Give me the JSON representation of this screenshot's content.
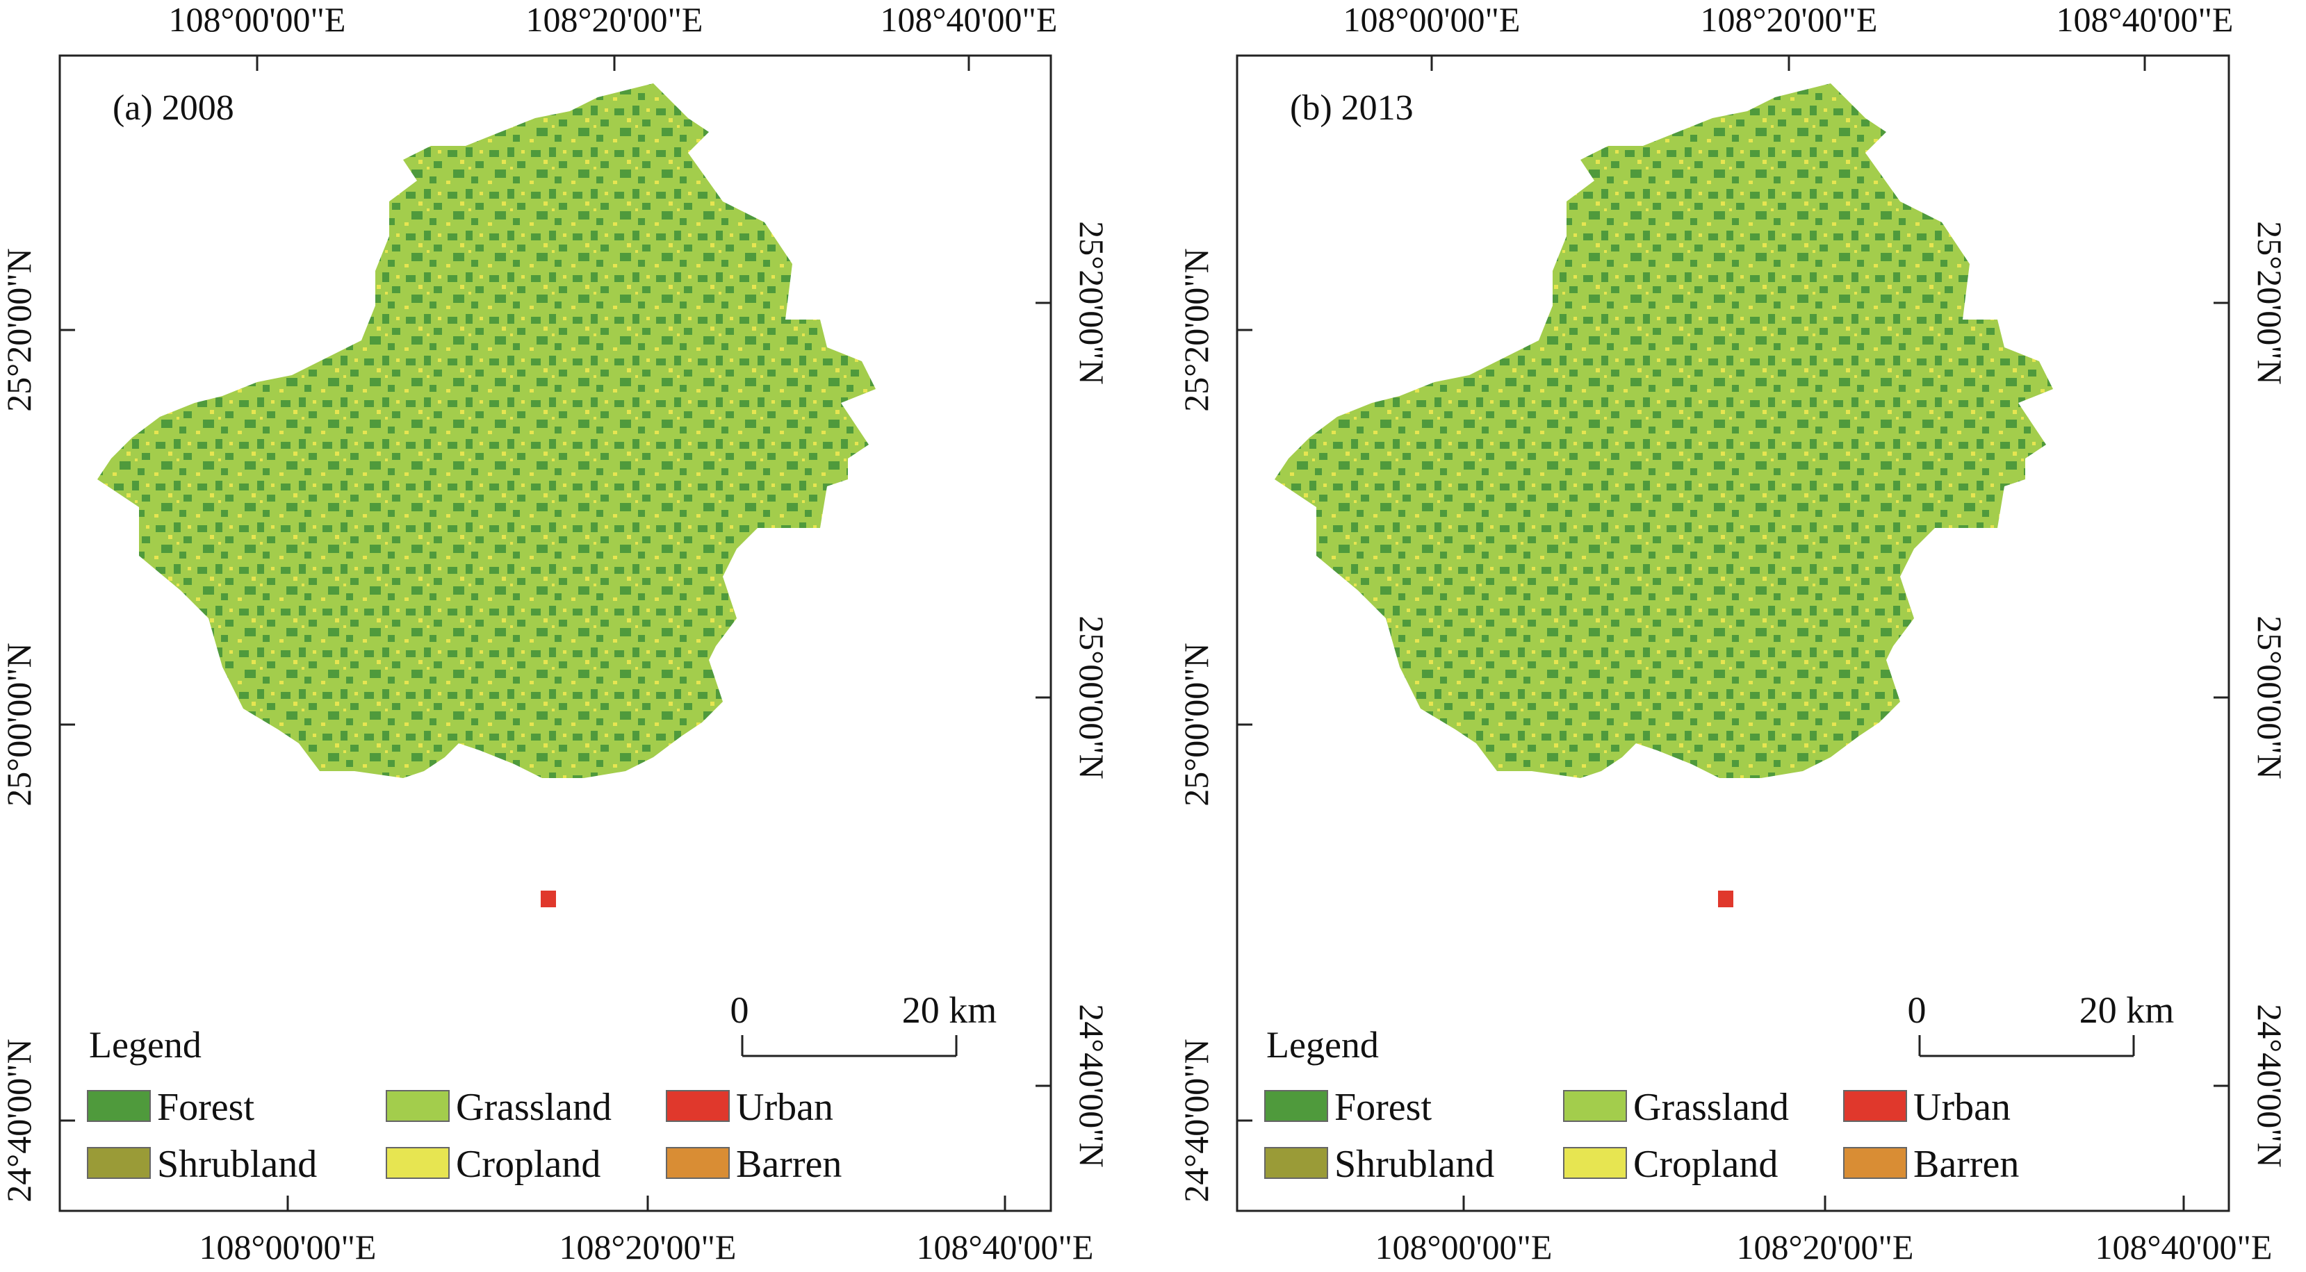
{
  "colors": {
    "forest": "#4f9a3c",
    "grassland": "#a3cd4c",
    "shrubland": "#9a9b37",
    "cropland": "#e7e551",
    "urban": "#e0382c",
    "barren": "#d98d34",
    "frame": "#222222",
    "background": "#ffffff"
  },
  "axes": {
    "lon_labels": [
      "108°00'00\"E",
      "108°20'00\"E",
      "108°40'00\"E"
    ],
    "lat_labels": [
      "24°40'00\"N",
      "25°00'00\"N",
      "25°20'00\"N"
    ]
  },
  "legend": {
    "title": "Legend",
    "items": [
      {
        "label": "Forest",
        "color_key": "forest"
      },
      {
        "label": "Grassland",
        "color_key": "grassland"
      },
      {
        "label": "Urban",
        "color_key": "urban"
      },
      {
        "label": "Shrubland",
        "color_key": "shrubland"
      },
      {
        "label": "Cropland",
        "color_key": "cropland"
      },
      {
        "label": "Barren",
        "color_key": "barren"
      }
    ]
  },
  "scale_bar": {
    "start_label": "0",
    "end_label": "20 km"
  },
  "panels": [
    {
      "id": "a",
      "title": "(a) 2008"
    },
    {
      "id": "b",
      "title": "(b) 2013"
    }
  ]
}
